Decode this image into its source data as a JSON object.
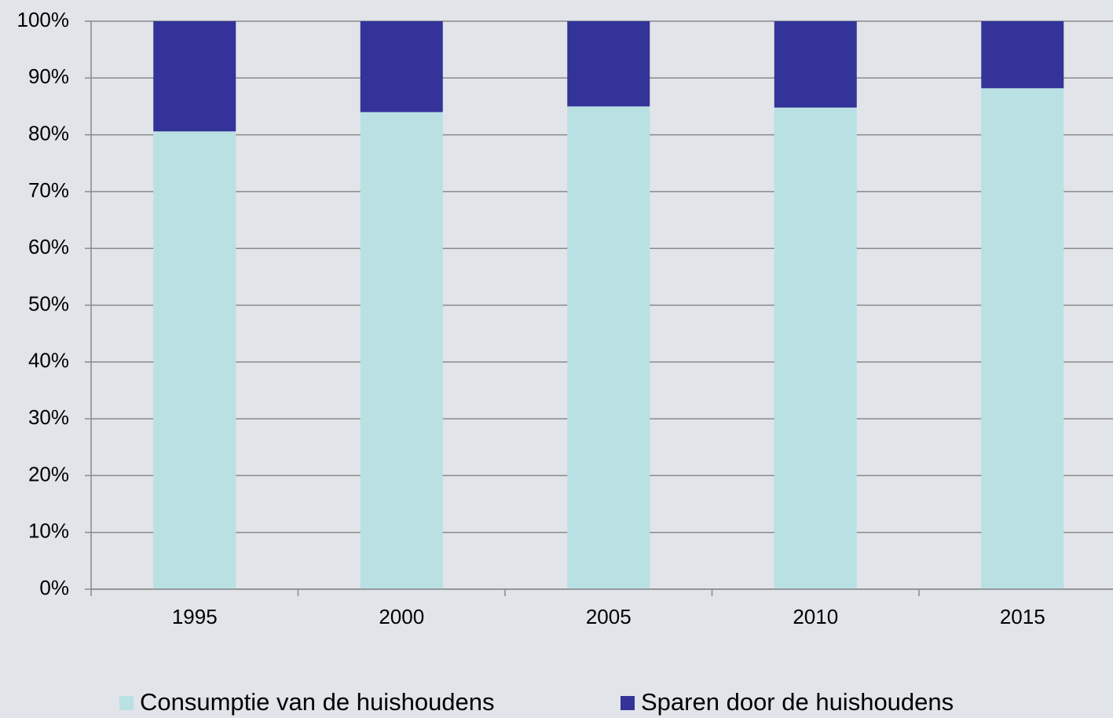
{
  "chart_data": {
    "type": "stacked_bar",
    "categories": [
      "1995",
      "2000",
      "2005",
      "2010",
      "2015"
    ],
    "series": [
      {
        "name": "Consumptie van de huishoudens",
        "color": "#b9e0e3",
        "values": [
          80.6,
          84,
          85,
          84.8,
          88.2
        ]
      },
      {
        "name": "Sparen door de huishoudens",
        "color": "#333399",
        "values": [
          19.4,
          16,
          15,
          15.2,
          11.8
        ]
      }
    ],
    "ylim": [
      0,
      100
    ],
    "yticks": [
      {
        "value": 0,
        "label": "0%"
      },
      {
        "value": 10,
        "label": "10%"
      },
      {
        "value": 20,
        "label": "20%"
      },
      {
        "value": 30,
        "label": "30%"
      },
      {
        "value": 40,
        "label": "40%"
      },
      {
        "value": 50,
        "label": "50%"
      },
      {
        "value": 60,
        "label": "60%"
      },
      {
        "value": 70,
        "label": "70%"
      },
      {
        "value": 80,
        "label": "80%"
      },
      {
        "value": 90,
        "label": "90%"
      },
      {
        "value": 100,
        "label": "100%"
      }
    ],
    "grid": true,
    "legend": "bottom"
  }
}
